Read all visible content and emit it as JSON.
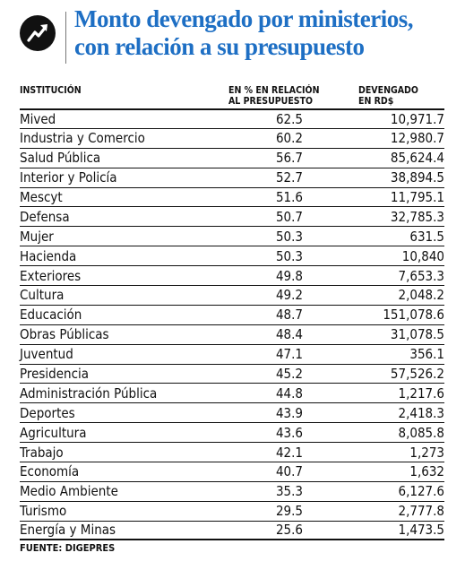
{
  "title": {
    "line1": "Monto devengado por ministerios,",
    "line2": "con relación a su presupuesto"
  },
  "headers": {
    "institution": "INSTITUCIÓN",
    "percent_line1": "EN % EN RELACIÓN",
    "percent_line2": "AL PRESUPUESTO",
    "accrued_line1": "DEVENGADO",
    "accrued_line2": "EN RD$"
  },
  "source": "FUENTE: DIGEPRES",
  "chart_data": {
    "type": "table",
    "title": "Monto devengado por ministerios, con relación a su presupuesto",
    "columns": [
      "INSTITUCIÓN",
      "EN % EN RELACIÓN AL PRESUPUESTO",
      "DEVENGADO EN RD$"
    ],
    "rows": [
      {
        "institution": "Mived",
        "percent": "62.5",
        "accrued": "10,971.7"
      },
      {
        "institution": "Industria y Comercio",
        "percent": "60.2",
        "accrued": "12,980.7"
      },
      {
        "institution": "Salud Pública",
        "percent": "56.7",
        "accrued": "85,624.4"
      },
      {
        "institution": "Interior y Policía",
        "percent": "52.7",
        "accrued": "38,894.5"
      },
      {
        "institution": "Mescyt",
        "percent": "51.6",
        "accrued": "11,795.1"
      },
      {
        "institution": "Defensa",
        "percent": "50.7",
        "accrued": "32,785.3"
      },
      {
        "institution": "Mujer",
        "percent": "50.3",
        "accrued": "631.5"
      },
      {
        "institution": "Hacienda",
        "percent": "50.3",
        "accrued": "10,840"
      },
      {
        "institution": "Exteriores",
        "percent": "49.8",
        "accrued": "7,653.3"
      },
      {
        "institution": "Cultura",
        "percent": "49.2",
        "accrued": "2,048.2"
      },
      {
        "institution": "Educación",
        "percent": "48.7",
        "accrued": "151,078.6"
      },
      {
        "institution": "Obras Públicas",
        "percent": "48.4",
        "accrued": "31,078.5"
      },
      {
        "institution": "Juventud",
        "percent": "47.1",
        "accrued": "356.1"
      },
      {
        "institution": "Presidencia",
        "percent": "45.2",
        "accrued": "57,526.2"
      },
      {
        "institution": "Administración Pública",
        "percent": "44.8",
        "accrued": "1,217.6"
      },
      {
        "institution": "Deportes",
        "percent": "43.9",
        "accrued": "2,418.3"
      },
      {
        "institution": "Agricultura",
        "percent": "43.6",
        "accrued": "8,085.8"
      },
      {
        "institution": "Trabajo",
        "percent": "42.1",
        "accrued": "1,273"
      },
      {
        "institution": "Economía",
        "percent": "40.7",
        "accrued": "1,632"
      },
      {
        "institution": "Medio Ambiente",
        "percent": "35.3",
        "accrued": "6,127.6"
      },
      {
        "institution": "Turismo",
        "percent": "29.5",
        "accrued": "2,777.8"
      },
      {
        "institution": "Energía y Minas",
        "percent": "25.6",
        "accrued": "1,473.5"
      }
    ]
  }
}
